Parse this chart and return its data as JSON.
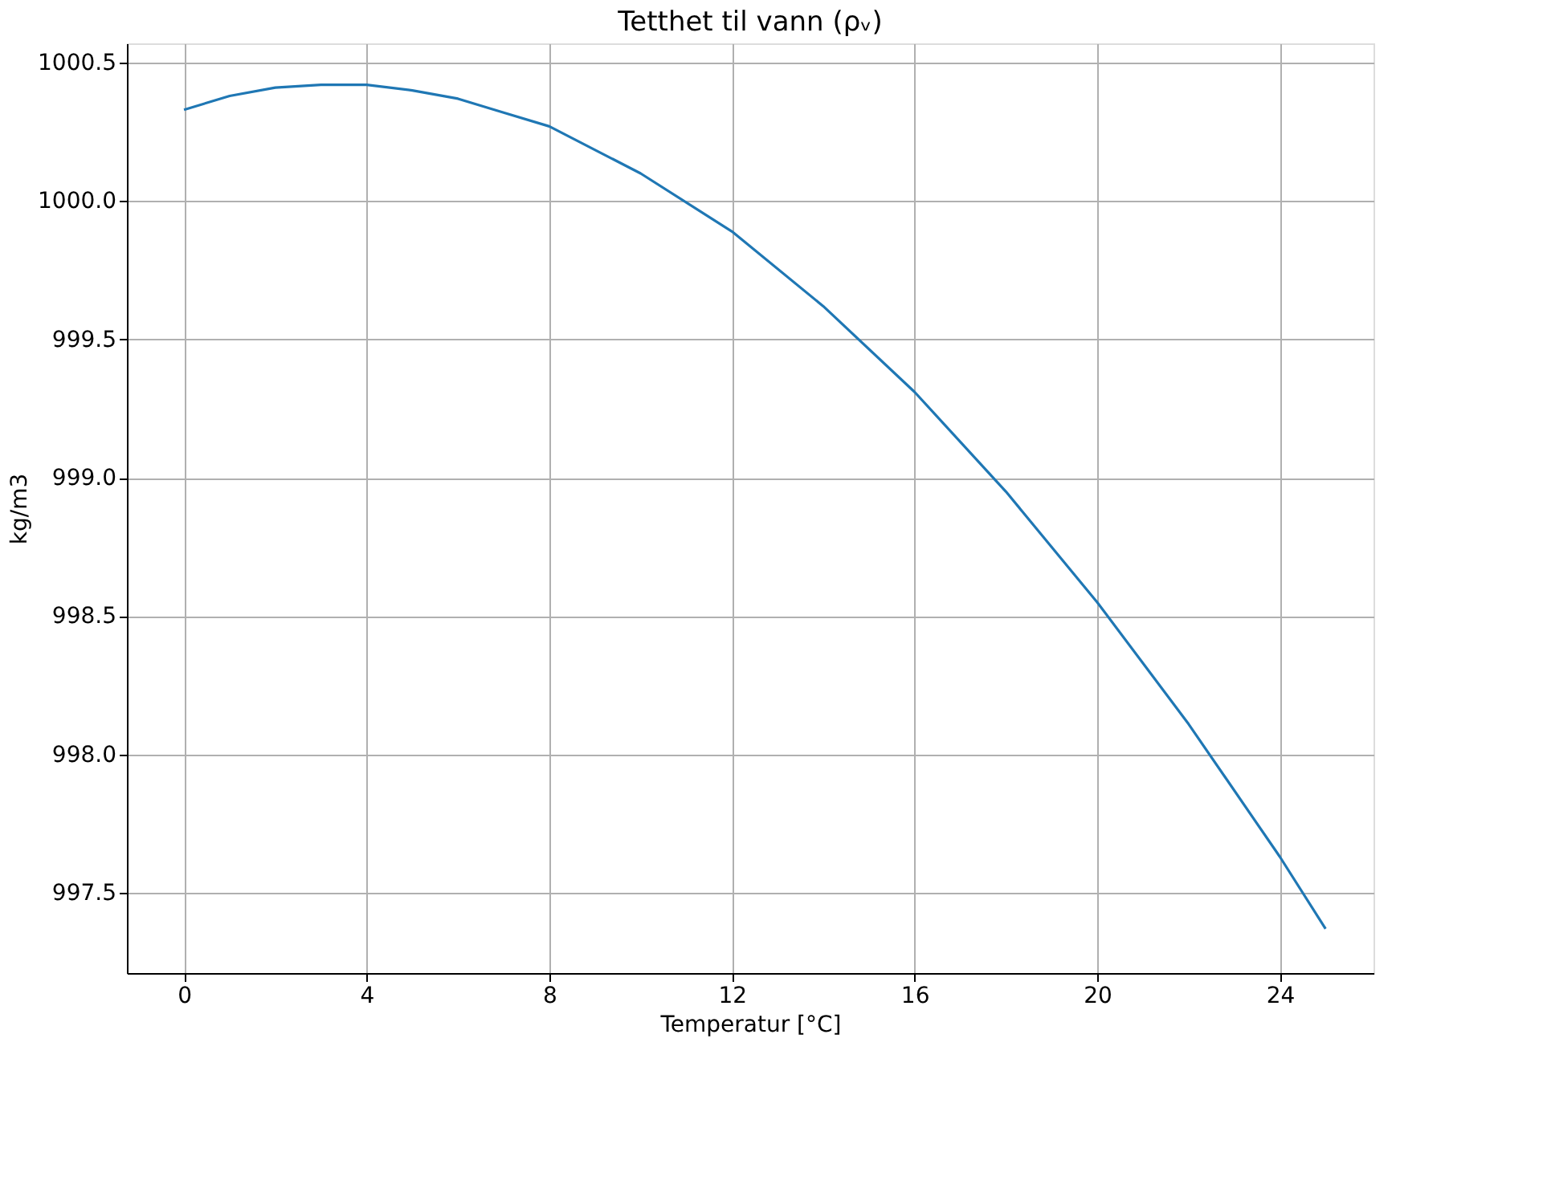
{
  "chart_data": {
    "type": "line",
    "title": "Tetthet til vann (ρᵥ)",
    "xlabel": "Temperatur [°C]",
    "ylabel": "kg/m3",
    "x": [
      0,
      1,
      2,
      3,
      4,
      5,
      6,
      7,
      8,
      10,
      12,
      14,
      16,
      18,
      20,
      22,
      24,
      25
    ],
    "series": [
      {
        "color": "#1f77b4",
        "values": [
          1000.33,
          1000.38,
          1000.41,
          1000.42,
          1000.42,
          1000.4,
          1000.37,
          1000.32,
          1000.27,
          1000.1,
          999.89,
          999.62,
          999.31,
          998.95,
          998.55,
          998.11,
          997.63,
          997.37
        ]
      }
    ],
    "xlim": [
      -1.25,
      26.05
    ],
    "ylim": [
      997.21,
      1000.57
    ],
    "xticks": [
      0,
      4,
      8,
      12,
      16,
      20,
      24
    ],
    "yticks": [
      {
        "value": 997.5,
        "label": "997.5"
      },
      {
        "value": 998.0,
        "label": "998.0"
      },
      {
        "value": 998.5,
        "label": "998.5"
      },
      {
        "value": 999.0,
        "label": "999.0"
      },
      {
        "value": 999.5,
        "label": "999.5"
      },
      {
        "value": 1000.0,
        "label": "1000.0"
      },
      {
        "value": 1000.5,
        "label": "1000.5"
      }
    ],
    "grid": true
  }
}
